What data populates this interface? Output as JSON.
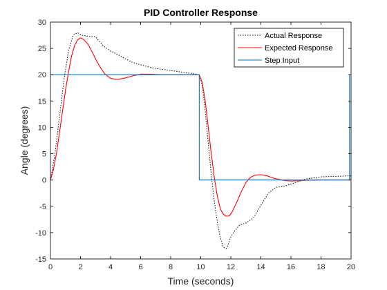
{
  "chart_data": {
    "type": "line",
    "title": "PID Controller Response",
    "xlabel": "Time (seconds)",
    "ylabel": "Angle (degrees)",
    "xlim": [
      0,
      20
    ],
    "ylim": [
      -15,
      30
    ],
    "xticks": [
      0,
      2,
      4,
      6,
      8,
      10,
      12,
      14,
      16,
      18,
      20
    ],
    "yticks": [
      -15,
      -10,
      -5,
      0,
      5,
      10,
      15,
      20,
      25,
      30
    ],
    "grid": false,
    "legend_position": "top-right",
    "series": [
      {
        "name": "Actual Response",
        "color": "#000000",
        "style": "dotted",
        "x": [
          0,
          0.3,
          0.6,
          0.9,
          1.2,
          1.5,
          1.8,
          2.1,
          2.5,
          3.0,
          3.5,
          4.0,
          4.5,
          5.0,
          5.5,
          6.0,
          6.5,
          7.0,
          7.5,
          8.0,
          8.5,
          9.0,
          9.5,
          9.9,
          10.1,
          10.3,
          10.5,
          10.7,
          10.9,
          11.1,
          11.3,
          11.5,
          11.7,
          11.8,
          12.0,
          12.3,
          12.6,
          13.0,
          13.5,
          14.0,
          14.5,
          15.0,
          15.5,
          16.0,
          16.5,
          17.0,
          18.0,
          19.0,
          20.0
        ],
        "y": [
          0,
          5,
          12,
          19,
          24.5,
          27.5,
          28,
          27.5,
          27.3,
          27.2,
          25.5,
          24.5,
          23.8,
          23,
          22.3,
          21.9,
          21.5,
          21.2,
          21,
          20.8,
          20.6,
          20.4,
          20.2,
          20,
          18,
          13,
          7,
          1,
          -4,
          -8,
          -11,
          -12.8,
          -13,
          -12.5,
          -10.8,
          -9.5,
          -8.5,
          -8.2,
          -7.2,
          -4.8,
          -2.5,
          -1.4,
          -1.2,
          -0.8,
          -0.3,
          0.2,
          0.6,
          0.7,
          0.8
        ]
      },
      {
        "name": "Expected Response",
        "color": "#ff0000",
        "style": "solid",
        "x": [
          0,
          0.2,
          0.4,
          0.6,
          0.8,
          1.0,
          1.2,
          1.4,
          1.6,
          1.8,
          2.0,
          2.2,
          2.5,
          2.8,
          3.0,
          3.3,
          3.6,
          4.0,
          4.5,
          5.0,
          5.5,
          6.0,
          6.5,
          7.0,
          7.5,
          8.0,
          8.5,
          9.0,
          9.5,
          9.9,
          10.1,
          10.3,
          10.5,
          10.7,
          10.9,
          11.1,
          11.3,
          11.5,
          11.7,
          11.9,
          12.1,
          12.4,
          12.7,
          13.0,
          13.3,
          13.6,
          14.0,
          14.4,
          14.8,
          15.2,
          15.6,
          16.0,
          16.5,
          17.0,
          18.0,
          19.0,
          20.0
        ],
        "y": [
          0,
          2,
          5,
          9,
          13,
          17,
          20.5,
          23.5,
          25.5,
          26.6,
          27,
          26.7,
          25.8,
          24.2,
          23,
          21.5,
          20.2,
          19.3,
          19.1,
          19.4,
          19.8,
          20.1,
          20.1,
          20.05,
          20,
          20,
          20,
          20,
          20,
          20,
          18.5,
          15,
          10,
          5,
          0.5,
          -3,
          -5.5,
          -6.5,
          -6.9,
          -6.8,
          -6,
          -4.2,
          -2.2,
          -0.5,
          0.5,
          0.9,
          1.0,
          0.8,
          0.4,
          0.1,
          -0.1,
          -0.2,
          -0.15,
          -0.05,
          0,
          0,
          0
        ]
      },
      {
        "name": "Step Input",
        "color": "#0072bd",
        "style": "solid",
        "x": [
          0,
          9.9,
          9.9,
          19.9,
          19.9,
          20.0
        ],
        "y": [
          20,
          20,
          0,
          0,
          20,
          20
        ]
      }
    ]
  }
}
